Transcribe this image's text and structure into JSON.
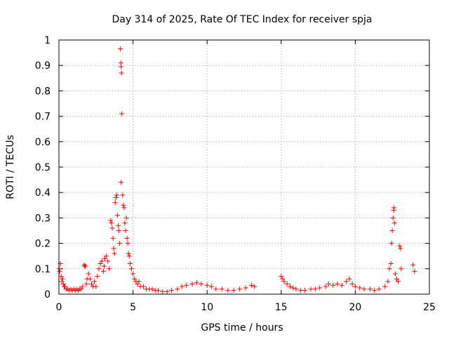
{
  "chart_data": {
    "type": "scatter",
    "title": "Day 314 of 2025, Rate Of TEC Index for receiver spja",
    "xlabel": "GPS time / hours",
    "ylabel": "ROTI / TECUs",
    "xlim": [
      0,
      25
    ],
    "ylim": [
      0,
      1
    ],
    "xticks": [
      "0",
      "5",
      "10",
      "15",
      "20",
      "25"
    ],
    "yticks": [
      "0",
      "0.1",
      "0.2",
      "0.3",
      "0.4",
      "0.5",
      "0.6",
      "0.7",
      "0.8",
      "0.9",
      "1"
    ],
    "grid": true,
    "marker": "+",
    "color": "#ff0000",
    "series": [
      {
        "name": "ROTI",
        "points": [
          [
            0.02,
            0.1
          ],
          [
            0.05,
            0.09
          ],
          [
            0.1,
            0.12
          ],
          [
            0.15,
            0.07
          ],
          [
            0.2,
            0.05
          ],
          [
            0.25,
            0.06
          ],
          [
            0.3,
            0.04
          ],
          [
            0.35,
            0.03
          ],
          [
            0.4,
            0.03
          ],
          [
            0.5,
            0.02
          ],
          [
            0.6,
            0.02
          ],
          [
            0.7,
            0.015
          ],
          [
            0.8,
            0.02
          ],
          [
            0.9,
            0.015
          ],
          [
            1.0,
            0.02
          ],
          [
            1.1,
            0.015
          ],
          [
            1.2,
            0.02
          ],
          [
            1.3,
            0.015
          ],
          [
            1.4,
            0.02
          ],
          [
            1.5,
            0.02
          ],
          [
            1.6,
            0.03
          ],
          [
            1.7,
            0.115
          ],
          [
            1.75,
            0.11
          ],
          [
            1.8,
            0.11
          ],
          [
            1.85,
            0.04
          ],
          [
            1.9,
            0.06
          ],
          [
            2.0,
            0.08
          ],
          [
            2.1,
            0.06
          ],
          [
            2.2,
            0.04
          ],
          [
            2.3,
            0.03
          ],
          [
            2.4,
            0.05
          ],
          [
            2.5,
            0.03
          ],
          [
            2.6,
            0.07
          ],
          [
            2.7,
            0.1
          ],
          [
            2.8,
            0.12
          ],
          [
            2.9,
            0.13
          ],
          [
            3.0,
            0.09
          ],
          [
            3.05,
            0.11
          ],
          [
            3.1,
            0.14
          ],
          [
            3.2,
            0.15
          ],
          [
            3.3,
            0.13
          ],
          [
            3.4,
            0.1
          ],
          [
            3.5,
            0.29
          ],
          [
            3.55,
            0.28
          ],
          [
            3.6,
            0.26
          ],
          [
            3.65,
            0.22
          ],
          [
            3.7,
            0.18
          ],
          [
            3.75,
            0.16
          ],
          [
            3.8,
            0.36
          ],
          [
            3.85,
            0.38
          ],
          [
            3.9,
            0.39
          ],
          [
            3.95,
            0.31
          ],
          [
            4.0,
            0.27
          ],
          [
            4.05,
            0.25
          ],
          [
            4.1,
            0.2
          ],
          [
            4.15,
            0.965
          ],
          [
            4.18,
            0.91
          ],
          [
            4.2,
            0.895
          ],
          [
            4.22,
            0.87
          ],
          [
            4.25,
            0.71
          ],
          [
            4.2,
            0.44
          ],
          [
            4.3,
            0.39
          ],
          [
            4.35,
            0.35
          ],
          [
            4.4,
            0.34
          ],
          [
            4.45,
            0.28
          ],
          [
            4.5,
            0.25
          ],
          [
            4.55,
            0.3
          ],
          [
            4.6,
            0.22
          ],
          [
            4.65,
            0.2
          ],
          [
            4.7,
            0.16
          ],
          [
            4.75,
            0.15
          ],
          [
            4.8,
            0.12
          ],
          [
            4.9,
            0.1
          ],
          [
            5.0,
            0.08
          ],
          [
            5.1,
            0.06
          ],
          [
            5.2,
            0.05
          ],
          [
            5.3,
            0.04
          ],
          [
            5.4,
            0.05
          ],
          [
            5.5,
            0.03
          ],
          [
            5.7,
            0.03
          ],
          [
            5.9,
            0.02
          ],
          [
            6.1,
            0.02
          ],
          [
            6.3,
            0.02
          ],
          [
            6.5,
            0.015
          ],
          [
            6.7,
            0.015
          ],
          [
            7.0,
            0.01
          ],
          [
            7.3,
            0.01
          ],
          [
            7.6,
            0.015
          ],
          [
            8.0,
            0.02
          ],
          [
            8.3,
            0.03
          ],
          [
            8.6,
            0.035
          ],
          [
            9.0,
            0.04
          ],
          [
            9.3,
            0.045
          ],
          [
            9.6,
            0.04
          ],
          [
            10.0,
            0.035
          ],
          [
            10.3,
            0.03
          ],
          [
            10.6,
            0.02
          ],
          [
            11.0,
            0.02
          ],
          [
            11.4,
            0.015
          ],
          [
            11.8,
            0.015
          ],
          [
            12.2,
            0.02
          ],
          [
            12.6,
            0.025
          ],
          [
            13.0,
            0.035
          ],
          [
            13.2,
            0.03
          ],
          [
            15.0,
            0.07
          ],
          [
            15.1,
            0.06
          ],
          [
            15.2,
            0.05
          ],
          [
            15.4,
            0.04
          ],
          [
            15.6,
            0.03
          ],
          [
            15.8,
            0.025
          ],
          [
            16.0,
            0.02
          ],
          [
            16.3,
            0.015
          ],
          [
            16.6,
            0.015
          ],
          [
            17.0,
            0.02
          ],
          [
            17.3,
            0.02
          ],
          [
            17.6,
            0.025
          ],
          [
            18.0,
            0.03
          ],
          [
            18.2,
            0.04
          ],
          [
            18.5,
            0.035
          ],
          [
            18.8,
            0.04
          ],
          [
            19.1,
            0.035
          ],
          [
            19.4,
            0.05
          ],
          [
            19.6,
            0.06
          ],
          [
            19.8,
            0.04
          ],
          [
            20.0,
            0.03
          ],
          [
            20.3,
            0.025
          ],
          [
            20.6,
            0.02
          ],
          [
            21.0,
            0.02
          ],
          [
            21.3,
            0.015
          ],
          [
            21.6,
            0.02
          ],
          [
            22.0,
            0.03
          ],
          [
            22.2,
            0.05
          ],
          [
            22.3,
            0.1
          ],
          [
            22.4,
            0.12
          ],
          [
            22.45,
            0.2
          ],
          [
            22.5,
            0.25
          ],
          [
            22.55,
            0.3
          ],
          [
            22.6,
            0.33
          ],
          [
            22.62,
            0.34
          ],
          [
            22.65,
            0.28
          ],
          [
            22.7,
            0.08
          ],
          [
            22.8,
            0.06
          ],
          [
            22.9,
            0.05
          ],
          [
            23.0,
            0.19
          ],
          [
            23.05,
            0.18
          ],
          [
            23.1,
            0.1
          ],
          [
            23.9,
            0.115
          ],
          [
            24.0,
            0.09
          ]
        ]
      }
    ]
  }
}
